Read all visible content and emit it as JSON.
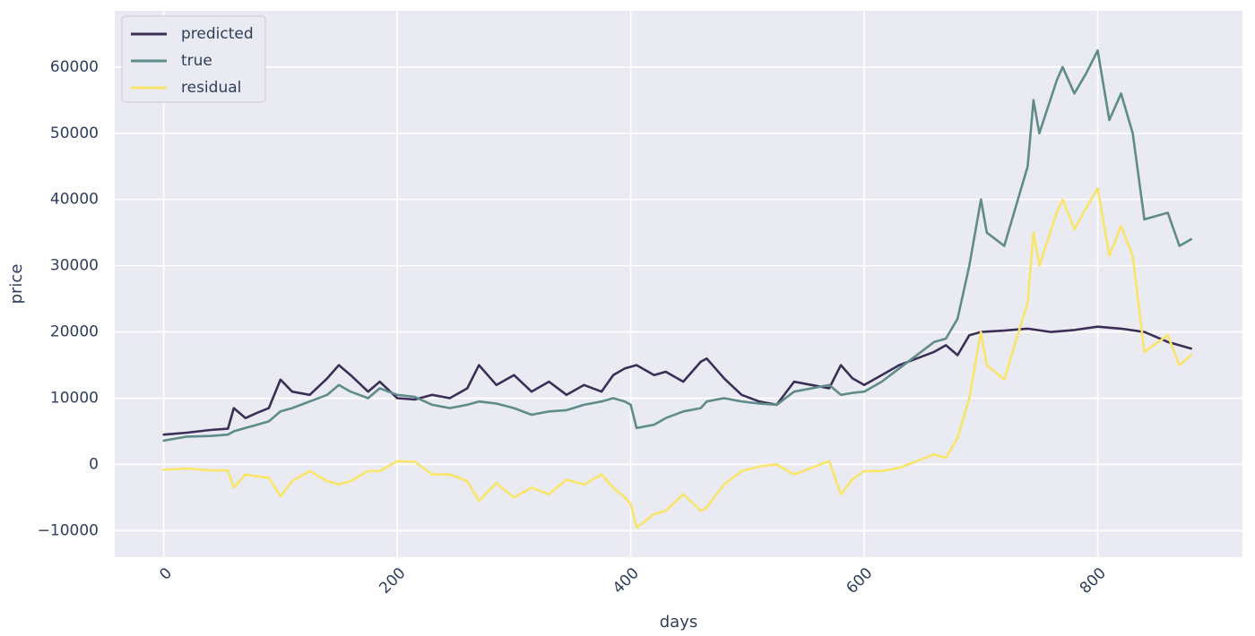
{
  "chart_data": {
    "type": "line",
    "title": "",
    "xlabel": "days",
    "ylabel": "price",
    "xlim": [
      -42,
      924
    ],
    "ylim": [
      -14000,
      68500
    ],
    "x_ticks": [
      0,
      200,
      400,
      600,
      800
    ],
    "x_tick_labels": [
      "0",
      "200",
      "400",
      "600",
      "800"
    ],
    "x_tick_rotation": -45,
    "y_ticks": [
      -10000,
      0,
      10000,
      20000,
      30000,
      40000,
      50000,
      60000
    ],
    "y_tick_labels": [
      "−10000",
      "0",
      "10000",
      "20000",
      "30000",
      "40000",
      "50000",
      "60000"
    ],
    "grid": true,
    "background": "#eaeaf2",
    "legend_position": "top-left",
    "series": [
      {
        "name": "predicted",
        "color": "#3b2f58",
        "x": [
          0,
          20,
          40,
          55,
          60,
          70,
          80,
          90,
          100,
          110,
          125,
          140,
          150,
          160,
          175,
          185,
          200,
          215,
          230,
          245,
          260,
          270,
          285,
          300,
          315,
          330,
          345,
          360,
          375,
          385,
          395,
          405,
          420,
          430,
          445,
          460,
          465,
          480,
          495,
          510,
          525,
          540,
          555,
          570,
          580,
          590,
          600,
          615,
          630,
          645,
          660,
          670,
          680,
          690,
          700,
          720,
          740,
          760,
          780,
          800,
          820,
          840,
          860,
          880
        ],
        "y": [
          4500,
          4800,
          5200,
          5400,
          8500,
          7000,
          7800,
          8500,
          12800,
          11000,
          10500,
          13000,
          15000,
          13500,
          11000,
          12500,
          10000,
          9800,
          10500,
          10000,
          11500,
          15000,
          12000,
          13500,
          11000,
          12500,
          10500,
          12000,
          11000,
          13500,
          14500,
          15000,
          13500,
          14000,
          12500,
          15500,
          16000,
          13000,
          10500,
          9500,
          9000,
          12500,
          12000,
          11500,
          15000,
          13000,
          12000,
          13500,
          15000,
          16000,
          17000,
          18000,
          16500,
          19500,
          20000,
          20200,
          20500,
          20000,
          20300,
          20800,
          20500,
          20000,
          18500,
          17500
        ]
      },
      {
        "name": "true",
        "color": "#5f8c8a",
        "x": [
          0,
          20,
          40,
          55,
          60,
          70,
          80,
          90,
          100,
          110,
          125,
          140,
          150,
          160,
          175,
          185,
          200,
          215,
          230,
          245,
          260,
          270,
          285,
          300,
          315,
          330,
          345,
          360,
          375,
          385,
          395,
          400,
          405,
          420,
          430,
          445,
          460,
          465,
          480,
          495,
          510,
          525,
          540,
          555,
          570,
          580,
          590,
          600,
          615,
          630,
          645,
          660,
          670,
          680,
          690,
          700,
          705,
          720,
          740,
          745,
          750,
          765,
          770,
          780,
          790,
          800,
          810,
          820,
          830,
          840,
          860,
          870,
          880
        ],
        "y": [
          3600,
          4200,
          4300,
          4500,
          5000,
          5500,
          6000,
          6500,
          8000,
          8500,
          9500,
          10500,
          12000,
          11000,
          10000,
          11500,
          10500,
          10200,
          9000,
          8500,
          9000,
          9500,
          9200,
          8500,
          7500,
          8000,
          8200,
          9000,
          9500,
          10000,
          9500,
          9000,
          5500,
          6000,
          7000,
          8000,
          8500,
          9500,
          10000,
          9500,
          9200,
          9000,
          11000,
          11500,
          12000,
          10500,
          10800,
          11000,
          12500,
          14500,
          16500,
          18500,
          19000,
          22000,
          30000,
          40000,
          35000,
          33000,
          45000,
          55000,
          50000,
          58000,
          60000,
          56000,
          59000,
          62500,
          52000,
          56000,
          50000,
          37000,
          38000,
          33000,
          34000
        ]
      },
      {
        "name": "residual",
        "color": "#f8e56a",
        "x": [
          0,
          20,
          40,
          55,
          60,
          70,
          80,
          90,
          100,
          110,
          125,
          140,
          150,
          160,
          175,
          185,
          200,
          215,
          230,
          245,
          260,
          270,
          285,
          300,
          315,
          330,
          345,
          360,
          375,
          385,
          395,
          400,
          405,
          420,
          430,
          445,
          460,
          465,
          480,
          495,
          510,
          525,
          540,
          555,
          570,
          580,
          590,
          600,
          615,
          630,
          645,
          660,
          670,
          680,
          690,
          700,
          705,
          720,
          740,
          745,
          750,
          765,
          770,
          780,
          790,
          800,
          810,
          820,
          830,
          840,
          860,
          870,
          880
        ],
        "y": [
          -800,
          -600,
          -900,
          -900,
          -3500,
          -1500,
          -1800,
          -2000,
          -4800,
          -2500,
          -1000,
          -2500,
          -3000,
          -2500,
          -1000,
          -1000,
          500,
          400,
          -1500,
          -1500,
          -2500,
          -5500,
          -2800,
          -5000,
          -3500,
          -4500,
          -2300,
          -3000,
          -1500,
          -3500,
          -5000,
          -6000,
          -9500,
          -7500,
          -7000,
          -4500,
          -7000,
          -6500,
          -3000,
          -1000,
          -300,
          0,
          -1500,
          -500,
          500,
          -4500,
          -2200,
          -1000,
          -1000,
          -500,
          500,
          1500,
          1000,
          4000,
          10000,
          20000,
          15000,
          12800,
          24500,
          35000,
          30000,
          38000,
          40000,
          35500,
          38700,
          41700,
          31500,
          36000,
          31500,
          17000,
          19500,
          15000,
          16500
        ]
      }
    ]
  }
}
